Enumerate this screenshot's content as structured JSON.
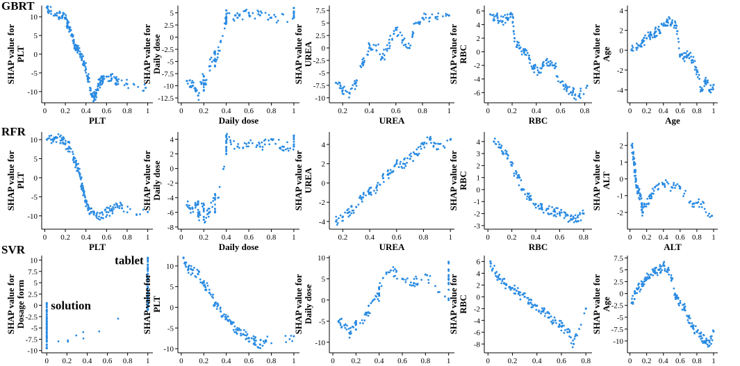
{
  "figure": {
    "rows": [
      {
        "label": "GBRT"
      },
      {
        "label": "RFR"
      },
      {
        "label": "SVR"
      }
    ]
  },
  "colors": {
    "point": "#2a8be2",
    "axis": "#000000",
    "background": "#ffffff"
  },
  "chart_data": [
    {
      "type": "scatter",
      "row": 0,
      "col": 0,
      "title": "",
      "xlabel": "PLT",
      "ylabel": [
        "SHAP value for",
        "PLT"
      ],
      "xlim": [
        -0.03,
        1.05
      ],
      "ylim": [
        -13,
        13
      ],
      "xticks": [
        0.0,
        0.2,
        0.4,
        0.6,
        0.8,
        1.0
      ],
      "yticks": [
        -10,
        -5,
        0,
        5,
        10
      ],
      "x": [
        0.02,
        0.05,
        0.12,
        0.17,
        0.2,
        0.22,
        0.24,
        0.26,
        0.28,
        0.3,
        0.32,
        0.34,
        0.36,
        0.38,
        0.4,
        0.42,
        0.44,
        0.46,
        0.48,
        0.5,
        0.52,
        0.54,
        0.56,
        0.6,
        0.65,
        0.7,
        0.8,
        0.98
      ],
      "y": [
        12.5,
        11.5,
        11,
        10,
        9.5,
        8.5,
        7,
        5,
        3,
        2.5,
        1.5,
        0,
        -1,
        -2,
        -4,
        -6,
        -9,
        -11,
        -11.5,
        -10.5,
        -8,
        -7.5,
        -6.5,
        -6,
        -6.5,
        -7,
        -8,
        -9
      ]
    },
    {
      "type": "scatter",
      "row": 0,
      "col": 1,
      "xlabel": "Daily dose",
      "ylabel": [
        "SHAP value for",
        "Daily dose"
      ],
      "xlim": [
        -0.03,
        1.05
      ],
      "ylim": [
        -13.5,
        6.5
      ],
      "xticks": [
        0.0,
        0.2,
        0.4,
        0.6,
        0.8,
        1.0
      ],
      "yticks": [
        -12.5,
        -10.0,
        -7.5,
        -5.0,
        -2.5,
        0.0,
        2.5,
        5.0
      ],
      "x": [
        0.05,
        0.1,
        0.15,
        0.2,
        0.2,
        0.25,
        0.3,
        0.3,
        0.35,
        0.4,
        0.4,
        0.4,
        0.5,
        0.6,
        0.7,
        0.8,
        1.0,
        1.0,
        1.0
      ],
      "y": [
        -9,
        -10,
        -12,
        -8,
        -11,
        -6,
        -3,
        -6,
        -1,
        4,
        3,
        5.5,
        4,
        5,
        4.5,
        4,
        4,
        5,
        6
      ]
    },
    {
      "type": "scatter",
      "row": 0,
      "col": 2,
      "xlabel": "UREA",
      "ylabel": [
        "SHAP value for",
        "UREA"
      ],
      "xlim": [
        0.1,
        1.04
      ],
      "ylim": [
        -11,
        8.5
      ],
      "xticks": [
        0.2,
        0.4,
        0.6,
        0.8,
        1.0
      ],
      "yticks": [
        -10.0,
        -7.5,
        -5.0,
        -2.5,
        0.0,
        2.5,
        5.0,
        7.5
      ],
      "x": [
        0.15,
        0.2,
        0.25,
        0.3,
        0.35,
        0.4,
        0.45,
        0.5,
        0.55,
        0.6,
        0.65,
        0.7,
        0.75,
        0.8,
        0.9,
        1.0
      ],
      "y": [
        -7,
        -8.5,
        -9,
        -7,
        -3,
        0,
        0.5,
        -2,
        1,
        4,
        1.5,
        0,
        5,
        6,
        6,
        6.5
      ]
    },
    {
      "type": "scatter",
      "row": 0,
      "col": 3,
      "xlabel": "RBC",
      "ylabel": [
        "SHAP value for",
        "RBC"
      ],
      "xlim": [
        -0.03,
        0.86
      ],
      "ylim": [
        -7.5,
        6.8
      ],
      "xticks": [
        0.0,
        0.2,
        0.4,
        0.6,
        0.8
      ],
      "yticks": [
        -6,
        -4,
        -2,
        0,
        2,
        4,
        6
      ],
      "x": [
        0.02,
        0.08,
        0.12,
        0.16,
        0.2,
        0.22,
        0.26,
        0.3,
        0.34,
        0.38,
        0.42,
        0.46,
        0.5,
        0.55,
        0.6,
        0.65,
        0.7,
        0.75,
        0.82
      ],
      "y": [
        5.5,
        5,
        4.5,
        5,
        5.5,
        2,
        0.5,
        0,
        -1,
        -2.5,
        -3,
        -2,
        -1.5,
        -2,
        -4.5,
        -5.5,
        -6,
        -6.5,
        -5
      ]
    },
    {
      "type": "scatter",
      "row": 0,
      "col": 4,
      "xlabel": "Age",
      "ylabel": [
        "SHAP value for",
        "Age"
      ],
      "xlim": [
        -0.03,
        1.05
      ],
      "ylim": [
        -5.3,
        4.5
      ],
      "xticks": [
        0.0,
        0.2,
        0.4,
        0.6,
        0.8,
        1.0
      ],
      "yticks": [
        -4,
        -2,
        0,
        2,
        4
      ],
      "x": [
        0.02,
        0.1,
        0.15,
        0.2,
        0.25,
        0.3,
        0.35,
        0.4,
        0.45,
        0.5,
        0.55,
        0.6,
        0.65,
        0.7,
        0.75,
        0.8,
        0.85,
        0.9,
        0.95,
        1.0
      ],
      "y": [
        0,
        0.5,
        0.8,
        1.2,
        1.6,
        1.8,
        2,
        2.5,
        3,
        2.8,
        2.5,
        -0.5,
        -0.7,
        -0.5,
        -1,
        -2,
        -4,
        -3,
        -4,
        -3.5
      ]
    },
    {
      "type": "scatter",
      "row": 1,
      "col": 0,
      "xlabel": "PLT",
      "ylabel": [
        "SHAP value for",
        "PLT"
      ],
      "xlim": [
        -0.03,
        1.05
      ],
      "ylim": [
        -13.5,
        12
      ],
      "xticks": [
        0.0,
        0.2,
        0.4,
        0.6,
        0.8,
        1.0
      ],
      "yticks": [
        -10,
        -5,
        0,
        5,
        10
      ],
      "x": [
        0.02,
        0.08,
        0.12,
        0.17,
        0.2,
        0.24,
        0.28,
        0.3,
        0.32,
        0.34,
        0.36,
        0.38,
        0.4,
        0.42,
        0.45,
        0.5,
        0.55,
        0.6,
        0.65,
        0.7,
        0.75,
        1.0
      ],
      "y": [
        10,
        10,
        10.5,
        10,
        9,
        8,
        5,
        4,
        2.5,
        1,
        -2,
        -4,
        -6,
        -8,
        -9,
        -10,
        -10.5,
        -9,
        -8.5,
        -7,
        -8,
        -9
      ]
    },
    {
      "type": "scatter",
      "row": 1,
      "col": 1,
      "xlabel": "Daily dose",
      "ylabel": [
        "SHAP value for",
        "Daily dose"
      ],
      "xlim": [
        -0.03,
        1.05
      ],
      "ylim": [
        -8.3,
        5
      ],
      "xticks": [
        0.0,
        0.2,
        0.4,
        0.6,
        0.8,
        1.0
      ],
      "yticks": [
        -8,
        -6,
        -4,
        -2,
        0,
        2,
        4
      ],
      "x": [
        0.05,
        0.1,
        0.15,
        0.15,
        0.2,
        0.2,
        0.25,
        0.3,
        0.3,
        0.4,
        0.4,
        0.4,
        0.5,
        0.6,
        0.7,
        0.8,
        0.9,
        1.0,
        1.0
      ],
      "y": [
        -5,
        -5.5,
        -4.5,
        -6.5,
        -5,
        -7,
        -6,
        -3.5,
        -6,
        2,
        3.5,
        4.5,
        3,
        3.5,
        3,
        4,
        3,
        3,
        4.5
      ]
    },
    {
      "type": "scatter",
      "row": 1,
      "col": 2,
      "xlabel": "UREA",
      "ylabel": [
        "SHAP value for",
        "UREA"
      ],
      "xlim": [
        0.1,
        1.03
      ],
      "ylim": [
        -4.8,
        5.3
      ],
      "xticks": [
        0.2,
        0.4,
        0.6,
        0.8,
        1.0
      ],
      "yticks": [
        -4,
        -2,
        0,
        2,
        4
      ],
      "x": [
        0.15,
        0.2,
        0.25,
        0.3,
        0.35,
        0.4,
        0.45,
        0.5,
        0.55,
        0.6,
        0.65,
        0.7,
        0.75,
        0.8,
        0.85,
        0.9,
        1.0
      ],
      "y": [
        -4,
        -3.5,
        -3,
        -2.5,
        -1.5,
        -1,
        -0.5,
        0.5,
        1,
        2,
        2,
        2.5,
        3,
        4,
        4.5,
        3.5,
        4.5
      ]
    },
    {
      "type": "scatter",
      "row": 1,
      "col": 3,
      "xlabel": "RBC",
      "ylabel": [
        "SHAP value for",
        "RBC"
      ],
      "xlim": [
        -0.03,
        0.87
      ],
      "ylim": [
        -3.3,
        4.8
      ],
      "xticks": [
        0.0,
        0.2,
        0.4,
        0.6,
        0.8
      ],
      "yticks": [
        -3,
        -2,
        -1,
        0,
        1,
        2,
        3,
        4
      ],
      "x": [
        0.05,
        0.1,
        0.15,
        0.2,
        0.25,
        0.3,
        0.35,
        0.4,
        0.45,
        0.5,
        0.55,
        0.6,
        0.65,
        0.7,
        0.75,
        0.8
      ],
      "y": [
        4,
        3.5,
        3,
        2,
        1,
        0,
        -0.8,
        -1.2,
        -1.5,
        -1.6,
        -1.8,
        -2,
        -2.2,
        -2.5,
        -2.3,
        -2
      ]
    },
    {
      "type": "scatter",
      "row": 1,
      "col": 4,
      "xlabel": "ALT",
      "ylabel": [
        "SHAP value for",
        "ALT"
      ],
      "xlim": [
        -0.03,
        1.05
      ],
      "ylim": [
        -3,
        2.8
      ],
      "xticks": [
        0.0,
        0.2,
        0.4,
        0.6,
        0.8,
        1.0
      ],
      "yticks": [
        -2,
        -1,
        0,
        1,
        2
      ],
      "x": [
        0.02,
        0.04,
        0.05,
        0.06,
        0.07,
        0.08,
        0.1,
        0.12,
        0.14,
        0.15,
        0.2,
        0.25,
        0.3,
        0.4,
        0.5,
        0.6,
        0.75,
        0.85,
        0.98
      ],
      "y": [
        2,
        1.5,
        1,
        0.5,
        0,
        -0.5,
        -0.8,
        -1,
        -1.5,
        -2,
        -1.5,
        -1,
        -0.5,
        -0.3,
        -0.5,
        -0.5,
        -1.5,
        -1.5,
        -2.2
      ]
    },
    {
      "type": "scatter",
      "row": 2,
      "col": 0,
      "xlabel": "Dosage form",
      "ylabel": [
        "SHAP value for",
        "Dosage form"
      ],
      "xlim": [
        -0.05,
        1.05
      ],
      "ylim": [
        -10.5,
        11
      ],
      "xticks": [
        0.0,
        0.2,
        0.4,
        0.6,
        0.8,
        1.0
      ],
      "yticks": [
        -10.0,
        -7.5,
        -5.0,
        -2.5,
        0.0,
        2.5,
        5.0,
        7.5,
        10.0
      ],
      "annotations": [
        {
          "text": "tablet",
          "x": 1.0,
          "y": 10
        },
        {
          "text": "solution",
          "x": 0.0,
          "y": 0
        }
      ],
      "x": [
        0,
        0,
        0,
        0,
        0,
        0,
        0,
        0,
        0,
        0,
        1,
        1,
        1,
        1,
        1,
        1,
        1,
        1,
        1
      ],
      "y": [
        0.5,
        -1,
        -2,
        -3,
        -4,
        -5,
        -6,
        -7,
        -8,
        -9.5,
        -1,
        0,
        1,
        2,
        4,
        6,
        8,
        9,
        10.5
      ]
    },
    {
      "type": "scatter",
      "row": 2,
      "col": 1,
      "xlabel": "PLT",
      "ylabel": [
        "SHAP value for",
        "PLT"
      ],
      "xlim": [
        -0.03,
        1.05
      ],
      "ylim": [
        -11,
        12.5
      ],
      "xticks": [
        0.0,
        0.2,
        0.4,
        0.6,
        0.8,
        1.0
      ],
      "yticks": [
        -10,
        -5,
        0,
        5,
        10
      ],
      "x": [
        0.02,
        0.06,
        0.1,
        0.15,
        0.2,
        0.25,
        0.3,
        0.35,
        0.4,
        0.45,
        0.5,
        0.55,
        0.6,
        0.65,
        0.7,
        0.75,
        1.0
      ],
      "y": [
        12,
        9,
        9,
        8,
        6,
        3.5,
        1,
        -1,
        -2.5,
        -4,
        -5.5,
        -6.5,
        -7.5,
        -8,
        -9,
        -8,
        -7
      ]
    },
    {
      "type": "scatter",
      "row": 2,
      "col": 2,
      "xlabel": "Daily dose",
      "ylabel": [
        "SHAP value for",
        "Daily dose"
      ],
      "xlim": [
        -0.03,
        1.05
      ],
      "ylim": [
        -12.5,
        10.5
      ],
      "xticks": [
        0.0,
        0.2,
        0.4,
        0.6,
        0.8,
        1.0
      ],
      "yticks": [
        -10,
        -5,
        0,
        5,
        10
      ],
      "x": [
        0.05,
        0.1,
        0.15,
        0.2,
        0.2,
        0.3,
        0.35,
        0.4,
        0.4,
        0.5,
        0.6,
        0.7,
        0.8,
        1.0,
        1.0,
        1.0
      ],
      "y": [
        -5,
        -6,
        -8,
        -5,
        -7,
        -3,
        0,
        1,
        3,
        7,
        5,
        4,
        6,
        0,
        5,
        9
      ]
    },
    {
      "type": "scatter",
      "row": 2,
      "col": 3,
      "xlabel": "RBC",
      "ylabel": [
        "SHAP value for",
        "RBC"
      ],
      "xlim": [
        -0.03,
        0.85
      ],
      "ylim": [
        -9.5,
        7
      ],
      "xticks": [
        0.0,
        0.2,
        0.4,
        0.6,
        0.8
      ],
      "yticks": [
        -8,
        -6,
        -4,
        -2,
        0,
        2,
        4,
        6
      ],
      "x": [
        0.02,
        0.06,
        0.1,
        0.15,
        0.2,
        0.25,
        0.3,
        0.35,
        0.4,
        0.45,
        0.5,
        0.55,
        0.6,
        0.65,
        0.7,
        0.8
      ],
      "y": [
        6,
        4,
        3,
        2,
        1.5,
        0.5,
        0,
        -1,
        -1.5,
        -2.5,
        -3.5,
        -4,
        -5,
        -6,
        -8,
        -2
      ]
    },
    {
      "type": "scatter",
      "row": 2,
      "col": 4,
      "xlabel": "Age",
      "ylabel": [
        "SHAP value for",
        "Age"
      ],
      "xlim": [
        -0.03,
        1.05
      ],
      "ylim": [
        -12.5,
        8
      ],
      "xticks": [
        0.0,
        0.2,
        0.4,
        0.6,
        0.8,
        1.0
      ],
      "yticks": [
        -10.0,
        -7.5,
        -5.0,
        -2.5,
        0.0,
        2.5,
        5.0,
        7.5
      ],
      "x": [
        0.02,
        0.06,
        0.1,
        0.15,
        0.2,
        0.25,
        0.3,
        0.35,
        0.4,
        0.45,
        0.5,
        0.55,
        0.6,
        0.65,
        0.7,
        0.75,
        0.8,
        0.85,
        0.9,
        0.95,
        1.0
      ],
      "y": [
        -2,
        0,
        1,
        2,
        3,
        4,
        4.5,
        5,
        6,
        5,
        3,
        -1,
        -2,
        -3,
        -5,
        -7,
        -8,
        -9,
        -10,
        -11,
        -8
      ]
    }
  ]
}
